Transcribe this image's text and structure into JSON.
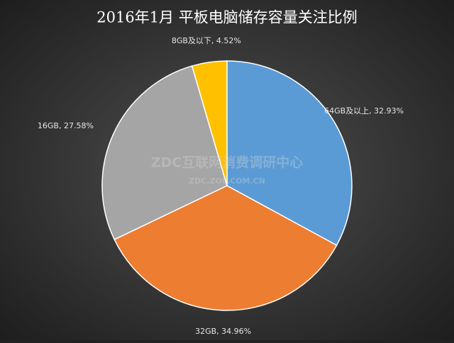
{
  "chart_data": {
    "type": "pie",
    "title": "2016年1月 平板电脑储存容量关注比例",
    "values": [
      32.93,
      34.96,
      27.58,
      4.52
    ],
    "value_labels": [
      "64GB及以上, 32.93%",
      "32GB, 34.96%",
      "16GB, 27.58%",
      "8GB及以下, 4.52%"
    ],
    "colors": [
      "#5b9bd5",
      "#ed7d31",
      "#a5a5a5",
      "#ffc000"
    ],
    "watermark": [
      "ZDC互联网消费调研中心",
      "ZDC.ZOL.COM.CN"
    ]
  }
}
